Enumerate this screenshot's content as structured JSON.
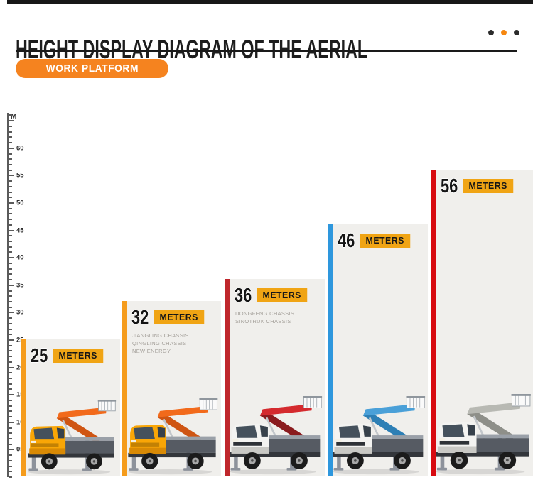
{
  "header": {
    "title": "HEIGHT DISPLAY DIAGRAM OF THE AERIAL",
    "badge": "WORK PLATFORM",
    "badge_color": "#f5831f",
    "dots_colors": [
      "#2b2b2b",
      "#f6870f",
      "#2b2b2b"
    ]
  },
  "ruler": {
    "unit": "M",
    "major_labels": [
      "60",
      "55",
      "50",
      "45",
      "40",
      "35",
      "30",
      "25",
      "20",
      "15",
      "10",
      "05"
    ]
  },
  "chart_data": {
    "type": "bar",
    "title": "HEIGHT DISPLAY DIAGRAM OF THE AERIAL",
    "subtitle": "WORK PLATFORM",
    "xlabel": "",
    "ylabel": "M",
    "ylim": [
      0,
      66
    ],
    "grid": false,
    "legend": "none",
    "bar_fill": "#f0efec",
    "categories": [
      "25 METERS",
      "32 METERS",
      "36 METERS",
      "46 METERS",
      "56 METERS"
    ],
    "values": [
      25,
      32,
      36,
      46,
      56
    ],
    "bars": [
      {
        "value": "25",
        "unit_label": "METERS",
        "sub_lines": [],
        "stripe_color": "#f59c1c",
        "truck": {
          "name": "truck-25m",
          "cab": "#f9a606",
          "cab_dark": "#d98a05",
          "boom": "#f26a1b",
          "boom_dark": "#cf5513",
          "grille": "rgba(0,0,0,0.22)"
        }
      },
      {
        "value": "32",
        "unit_label": "METERS",
        "sub_lines": [
          "JIANGLING CHASSIS",
          "QINGLING CHASSIS",
          "NEW ENERGY"
        ],
        "stripe_color": "#f59c1c",
        "truck": {
          "name": "truck-32m",
          "cab": "#f9a606",
          "cab_dark": "#d98a05",
          "boom": "#f26a1b",
          "boom_dark": "#cf5513",
          "grille": "rgba(0,0,0,0.22)"
        }
      },
      {
        "value": "36",
        "unit_label": "METERS",
        "sub_lines": [
          "DONGFENG CHASSIS",
          "SINOTRUK CHASSIS"
        ],
        "stripe_color": "#bf272c",
        "truck": {
          "name": "truck-36m",
          "cab": "#f3f3f1",
          "cab_dark": "#c9c9c5",
          "boom": "#d42a2e",
          "boom_dark": "#8a1b1e",
          "grille": "#2e3237"
        }
      },
      {
        "value": "46",
        "unit_label": "METERS",
        "sub_lines": [],
        "stripe_color": "#2e97dd",
        "truck": {
          "name": "truck-46m",
          "cab": "#f3f3f1",
          "cab_dark": "#c9c9c5",
          "boom": "#4aa0d8",
          "boom_dark": "#2d7fb5",
          "grille": "#2e3237"
        }
      },
      {
        "value": "56",
        "unit_label": "METERS",
        "sub_lines": [],
        "stripe_color": "#d70b10",
        "truck": {
          "name": "truck-56m",
          "cab": "#f3f3f1",
          "cab_dark": "#c9c9c5",
          "boom": "#b8b9b3",
          "boom_dark": "#8e8f89",
          "grille": "#2e3237"
        }
      }
    ]
  }
}
